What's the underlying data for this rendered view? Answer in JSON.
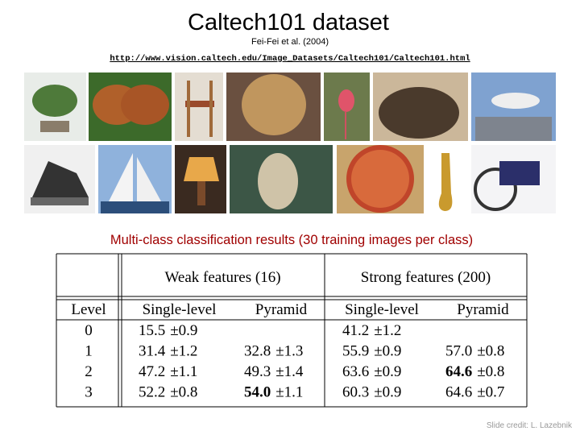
{
  "header": {
    "title": "Caltech101 dataset",
    "subtitle": "Fei-Fei et al. (2004)",
    "url": "http://www.vision.caltech.edu/Image_Datasets/Caltech101/Caltech101.html"
  },
  "caption": "Multi-class classification results (30 training images per class)",
  "table": {
    "groups": [
      "Weak features (16)",
      "Strong features (200)"
    ],
    "columns": [
      "Level",
      "Single-level",
      "Pyramid",
      "Single-level",
      "Pyramid"
    ],
    "rows": [
      {
        "level": "0",
        "cells": [
          {
            "mean": "15.5",
            "err": "±0.9"
          },
          null,
          {
            "mean": "41.2",
            "err": "±1.2"
          },
          null
        ]
      },
      {
        "level": "1",
        "cells": [
          {
            "mean": "31.4",
            "err": "±1.2"
          },
          {
            "mean": "32.8",
            "err": "±1.3"
          },
          {
            "mean": "55.9",
            "err": "±0.9"
          },
          {
            "mean": "57.0",
            "err": "±0.8"
          }
        ]
      },
      {
        "level": "2",
        "cells": [
          {
            "mean": "47.2",
            "err": "±1.1"
          },
          {
            "mean": "49.3",
            "err": "±1.4"
          },
          {
            "mean": "63.6",
            "err": "±0.9"
          },
          {
            "mean": "64.6",
            "err": "±0.8",
            "bold": true
          }
        ]
      },
      {
        "level": "3",
        "cells": [
          {
            "mean": "52.2",
            "err": "±0.8"
          },
          {
            "mean": "54.0",
            "err": "±1.1",
            "bold": true
          },
          {
            "mean": "60.3",
            "err": "±0.9"
          },
          {
            "mean": "64.6",
            "err": "±0.7"
          }
        ]
      }
    ]
  },
  "credit": "Slide credit: L. Lazebnik"
}
